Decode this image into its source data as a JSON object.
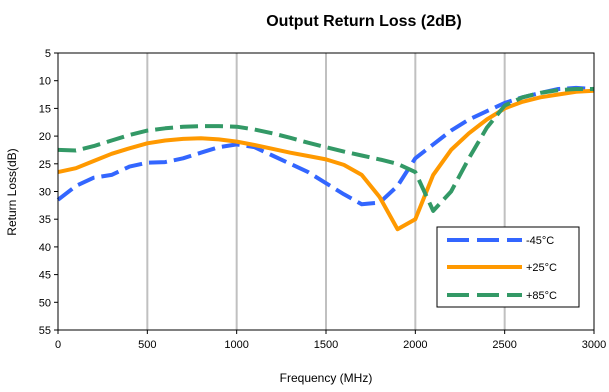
{
  "chart_data": {
    "type": "line",
    "title": "Output Return Loss (2dB)",
    "xlabel": "Frequency (MHz)",
    "ylabel": "Return Loss(dB)",
    "xlim": [
      0,
      3000
    ],
    "ylim": [
      5,
      55
    ],
    "y_inverted": true,
    "x_ticks": [
      0,
      500,
      1000,
      1500,
      2000,
      2500,
      3000
    ],
    "y_ticks": [
      5,
      10,
      15,
      20,
      25,
      30,
      35,
      40,
      45,
      50,
      55
    ],
    "grid": "vertical",
    "legend_position": "bottom-right",
    "series": [
      {
        "name": "-45°C",
        "color": "#3366ff",
        "style": "dashed",
        "x": [
          0,
          100,
          200,
          300,
          400,
          500,
          600,
          700,
          800,
          900,
          1000,
          1100,
          1200,
          1300,
          1400,
          1500,
          1600,
          1700,
          1800,
          1900,
          2000,
          2100,
          2200,
          2300,
          2400,
          2500,
          2600,
          2700,
          2800,
          2900,
          3000
        ],
        "y": [
          31.5,
          29,
          27.5,
          27,
          25.5,
          24.8,
          24.7,
          24,
          23,
          22,
          21.5,
          22,
          23.5,
          25,
          26.5,
          28.5,
          30.5,
          32.3,
          32,
          29,
          24,
          21.5,
          19,
          17,
          15.5,
          14,
          13,
          12.2,
          11.5,
          11.3,
          11.5
        ]
      },
      {
        "name": "+25°C",
        "color": "#ff9900",
        "style": "solid",
        "x": [
          0,
          100,
          200,
          300,
          400,
          500,
          600,
          700,
          800,
          900,
          1000,
          1100,
          1200,
          1300,
          1400,
          1500,
          1600,
          1700,
          1800,
          1900,
          2000,
          2100,
          2200,
          2300,
          2400,
          2500,
          2600,
          2700,
          2800,
          2900,
          3000
        ],
        "y": [
          26.5,
          25.8,
          24.5,
          23.2,
          22.2,
          21.3,
          20.8,
          20.5,
          20.4,
          20.6,
          21,
          21.6,
          22.3,
          23,
          23.6,
          24.2,
          25.2,
          27,
          31,
          36.8,
          35,
          27,
          22.5,
          19.5,
          17,
          15,
          13.8,
          13,
          12.5,
          12,
          11.8
        ]
      },
      {
        "name": "+85°C",
        "color": "#339966",
        "style": "dashed",
        "x": [
          0,
          100,
          200,
          300,
          400,
          500,
          600,
          700,
          800,
          900,
          1000,
          1100,
          1200,
          1300,
          1400,
          1500,
          1600,
          1700,
          1800,
          1900,
          2000,
          2100,
          2200,
          2300,
          2400,
          2500,
          2600,
          2700,
          2800,
          2900,
          3000
        ],
        "y": [
          22.5,
          22.6,
          21.8,
          20.8,
          19.8,
          19,
          18.6,
          18.3,
          18.2,
          18.2,
          18.3,
          18.8,
          19.5,
          20.3,
          21.2,
          22,
          22.8,
          23.5,
          24.2,
          25,
          26.5,
          33.5,
          30,
          24,
          18.5,
          14.5,
          13,
          12.2,
          11.7,
          11.5,
          11.5
        ]
      }
    ]
  }
}
